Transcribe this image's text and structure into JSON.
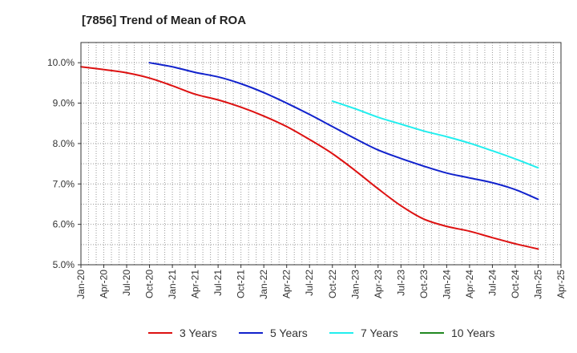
{
  "chart_data": {
    "type": "line",
    "title": "[7856]  Trend of Mean of ROA",
    "xlabel": "",
    "ylabel": "",
    "ylim": [
      5.0,
      10.5
    ],
    "yticks": [
      5.0,
      6.0,
      7.0,
      8.0,
      9.0,
      10.0
    ],
    "ytick_labels": [
      "5.0%",
      "6.0%",
      "7.0%",
      "8.0%",
      "9.0%",
      "10.0%"
    ],
    "x_tick_labels": [
      "Jan-20",
      "Apr-20",
      "Jul-20",
      "Oct-20",
      "Jan-21",
      "Apr-21",
      "Jul-21",
      "Oct-21",
      "Jan-22",
      "Apr-22",
      "Jul-22",
      "Oct-22",
      "Jan-23",
      "Apr-23",
      "Jul-23",
      "Oct-23",
      "Jan-24",
      "Apr-24",
      "Jul-24",
      "Oct-24",
      "Jan-25",
      "Apr-25"
    ],
    "grid": true,
    "legend_position": "bottom",
    "series": [
      {
        "name": "3 Years",
        "color": "#dd1111",
        "x": [
          0,
          1,
          2,
          3,
          4,
          5,
          6,
          7,
          8,
          9,
          10,
          11,
          12,
          13,
          14,
          15,
          16,
          17,
          18,
          19,
          20
        ],
        "values": [
          9.9,
          9.83,
          9.75,
          9.62,
          9.43,
          9.22,
          9.08,
          8.9,
          8.68,
          8.42,
          8.1,
          7.75,
          7.33,
          6.88,
          6.46,
          6.13,
          5.95,
          5.83,
          5.67,
          5.52,
          5.39
        ]
      },
      {
        "name": "5 Years",
        "color": "#1122cc",
        "x": [
          3,
          4,
          5,
          6,
          7,
          8,
          9,
          10,
          11,
          12,
          13,
          14,
          15,
          16,
          17,
          18,
          19,
          20
        ],
        "values": [
          10.0,
          9.9,
          9.76,
          9.65,
          9.48,
          9.26,
          9.0,
          8.72,
          8.42,
          8.12,
          7.84,
          7.63,
          7.44,
          7.27,
          7.15,
          7.03,
          6.86,
          6.62
        ]
      },
      {
        "name": "7 Years",
        "color": "#22eeee",
        "x": [
          11,
          12,
          13,
          14,
          15,
          16,
          17,
          18,
          19,
          20
        ],
        "values": [
          9.05,
          8.86,
          8.65,
          8.48,
          8.31,
          8.17,
          8.01,
          7.82,
          7.62,
          7.4
        ]
      },
      {
        "name": "10 Years",
        "color": "#228822",
        "x": [],
        "values": []
      }
    ]
  }
}
